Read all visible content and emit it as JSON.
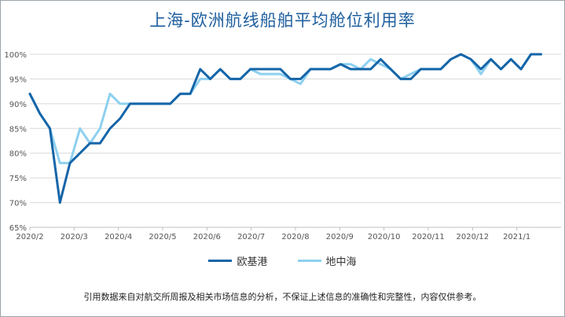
{
  "chart_data": {
    "type": "line",
    "title": "上海-欧洲航线船舶平均舱位利用率",
    "xlabel": "",
    "ylabel": "",
    "ylim": [
      65,
      100
    ],
    "yticks": [
      "65%",
      "70%",
      "75%",
      "80%",
      "85%",
      "90%",
      "95%",
      "100%"
    ],
    "ytick_values": [
      65,
      70,
      75,
      80,
      85,
      90,
      95,
      100
    ],
    "xtick_labels": [
      "2020/2",
      "2020/3",
      "2020/4",
      "2020/5",
      "2020/6",
      "2020/7",
      "2020/8",
      "2020/9",
      "2020/10",
      "2020/11",
      "2020/12",
      "2021/1"
    ],
    "grid": "horizontal",
    "legend_position": "bottom",
    "x": [
      0,
      1,
      2,
      3,
      4,
      5,
      6,
      7,
      8,
      9,
      10,
      11,
      12,
      13,
      14,
      15,
      16,
      17,
      18,
      19,
      20,
      21,
      22,
      23,
      24,
      25,
      26,
      27,
      28,
      29,
      30,
      31,
      32,
      33,
      34,
      35,
      36,
      37,
      38,
      39,
      40,
      41,
      42,
      43,
      44,
      45,
      46,
      47,
      48,
      49,
      50,
      51,
      52,
      53
    ],
    "series": [
      {
        "name": "欧基港",
        "color": "#1565a8",
        "values": [
          92,
          88,
          85,
          70,
          78,
          80,
          82,
          82,
          85,
          87,
          90,
          90,
          90,
          90,
          90,
          92,
          92,
          97,
          95,
          97,
          95,
          95,
          97,
          97,
          97,
          97,
          95,
          95,
          97,
          97,
          97,
          98,
          97,
          97,
          97,
          99,
          97,
          95,
          95,
          97,
          97,
          97,
          99,
          100,
          99,
          97,
          99,
          97,
          99,
          97,
          100,
          100,
          null,
          null
        ]
      },
      {
        "name": "地中海",
        "color": "#8ed0f0",
        "values": [
          92,
          88,
          85,
          78,
          78,
          85,
          82,
          85,
          92,
          90,
          90,
          90,
          90,
          90,
          90,
          92,
          92,
          95,
          95,
          97,
          95,
          95,
          97,
          96,
          96,
          96,
          95,
          94,
          97,
          97,
          97,
          98,
          98,
          97,
          99,
          98,
          97,
          95,
          96,
          97,
          97,
          97,
          99,
          100,
          99,
          96,
          99,
          97,
          99,
          97,
          100,
          100,
          null,
          null
        ]
      }
    ]
  },
  "footnote": "引用数据来自对航交所周报及相关市场信息的分析，不保证上述信息的准确性和完整性，内容仅供参考。"
}
